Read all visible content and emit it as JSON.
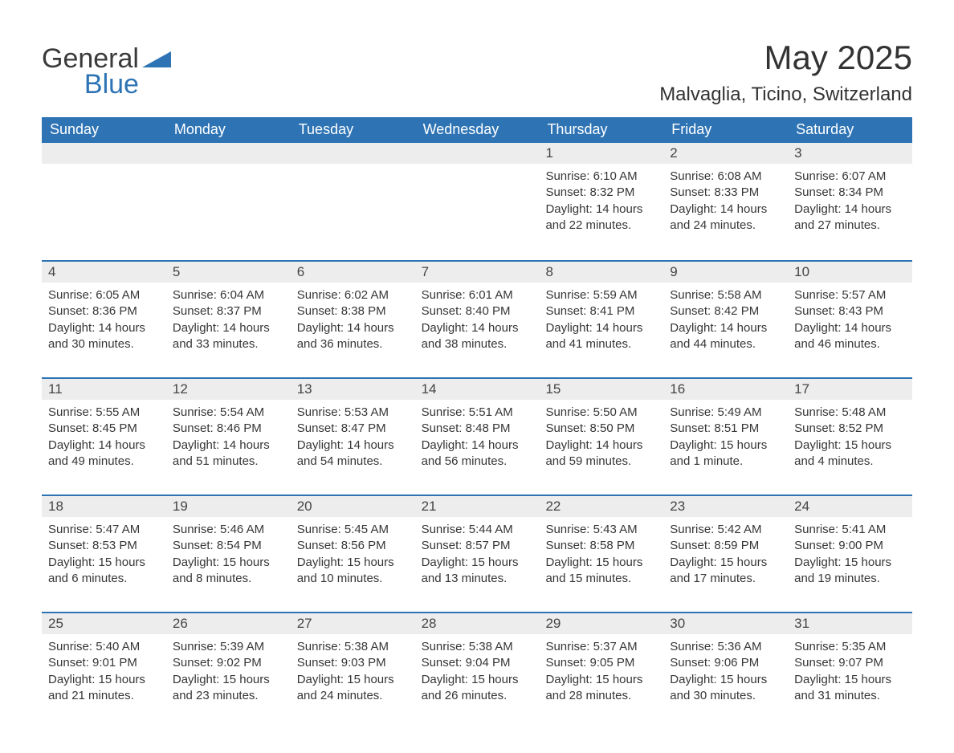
{
  "logo": {
    "word1": "General",
    "word2": "Blue",
    "accent_color": "#2e74b5",
    "text_color": "#3a3a3a"
  },
  "title": "May 2025",
  "location": "Malvaglia, Ticino, Switzerland",
  "colors": {
    "header_bg": "#2e74b5",
    "header_text": "#ffffff",
    "daynum_bg": "#ededed",
    "week_border": "#2e74b5",
    "body_text": "#363636",
    "page_bg": "#ffffff"
  },
  "day_headers": [
    "Sunday",
    "Monday",
    "Tuesday",
    "Wednesday",
    "Thursday",
    "Friday",
    "Saturday"
  ],
  "weeks": [
    [
      null,
      null,
      null,
      null,
      {
        "n": "1",
        "sunrise": "Sunrise: 6:10 AM",
        "sunset": "Sunset: 8:32 PM",
        "daylight": "Daylight: 14 hours and 22 minutes."
      },
      {
        "n": "2",
        "sunrise": "Sunrise: 6:08 AM",
        "sunset": "Sunset: 8:33 PM",
        "daylight": "Daylight: 14 hours and 24 minutes."
      },
      {
        "n": "3",
        "sunrise": "Sunrise: 6:07 AM",
        "sunset": "Sunset: 8:34 PM",
        "daylight": "Daylight: 14 hours and 27 minutes."
      }
    ],
    [
      {
        "n": "4",
        "sunrise": "Sunrise: 6:05 AM",
        "sunset": "Sunset: 8:36 PM",
        "daylight": "Daylight: 14 hours and 30 minutes."
      },
      {
        "n": "5",
        "sunrise": "Sunrise: 6:04 AM",
        "sunset": "Sunset: 8:37 PM",
        "daylight": "Daylight: 14 hours and 33 minutes."
      },
      {
        "n": "6",
        "sunrise": "Sunrise: 6:02 AM",
        "sunset": "Sunset: 8:38 PM",
        "daylight": "Daylight: 14 hours and 36 minutes."
      },
      {
        "n": "7",
        "sunrise": "Sunrise: 6:01 AM",
        "sunset": "Sunset: 8:40 PM",
        "daylight": "Daylight: 14 hours and 38 minutes."
      },
      {
        "n": "8",
        "sunrise": "Sunrise: 5:59 AM",
        "sunset": "Sunset: 8:41 PM",
        "daylight": "Daylight: 14 hours and 41 minutes."
      },
      {
        "n": "9",
        "sunrise": "Sunrise: 5:58 AM",
        "sunset": "Sunset: 8:42 PM",
        "daylight": "Daylight: 14 hours and 44 minutes."
      },
      {
        "n": "10",
        "sunrise": "Sunrise: 5:57 AM",
        "sunset": "Sunset: 8:43 PM",
        "daylight": "Daylight: 14 hours and 46 minutes."
      }
    ],
    [
      {
        "n": "11",
        "sunrise": "Sunrise: 5:55 AM",
        "sunset": "Sunset: 8:45 PM",
        "daylight": "Daylight: 14 hours and 49 minutes."
      },
      {
        "n": "12",
        "sunrise": "Sunrise: 5:54 AM",
        "sunset": "Sunset: 8:46 PM",
        "daylight": "Daylight: 14 hours and 51 minutes."
      },
      {
        "n": "13",
        "sunrise": "Sunrise: 5:53 AM",
        "sunset": "Sunset: 8:47 PM",
        "daylight": "Daylight: 14 hours and 54 minutes."
      },
      {
        "n": "14",
        "sunrise": "Sunrise: 5:51 AM",
        "sunset": "Sunset: 8:48 PM",
        "daylight": "Daylight: 14 hours and 56 minutes."
      },
      {
        "n": "15",
        "sunrise": "Sunrise: 5:50 AM",
        "sunset": "Sunset: 8:50 PM",
        "daylight": "Daylight: 14 hours and 59 minutes."
      },
      {
        "n": "16",
        "sunrise": "Sunrise: 5:49 AM",
        "sunset": "Sunset: 8:51 PM",
        "daylight": "Daylight: 15 hours and 1 minute."
      },
      {
        "n": "17",
        "sunrise": "Sunrise: 5:48 AM",
        "sunset": "Sunset: 8:52 PM",
        "daylight": "Daylight: 15 hours and 4 minutes."
      }
    ],
    [
      {
        "n": "18",
        "sunrise": "Sunrise: 5:47 AM",
        "sunset": "Sunset: 8:53 PM",
        "daylight": "Daylight: 15 hours and 6 minutes."
      },
      {
        "n": "19",
        "sunrise": "Sunrise: 5:46 AM",
        "sunset": "Sunset: 8:54 PM",
        "daylight": "Daylight: 15 hours and 8 minutes."
      },
      {
        "n": "20",
        "sunrise": "Sunrise: 5:45 AM",
        "sunset": "Sunset: 8:56 PM",
        "daylight": "Daylight: 15 hours and 10 minutes."
      },
      {
        "n": "21",
        "sunrise": "Sunrise: 5:44 AM",
        "sunset": "Sunset: 8:57 PM",
        "daylight": "Daylight: 15 hours and 13 minutes."
      },
      {
        "n": "22",
        "sunrise": "Sunrise: 5:43 AM",
        "sunset": "Sunset: 8:58 PM",
        "daylight": "Daylight: 15 hours and 15 minutes."
      },
      {
        "n": "23",
        "sunrise": "Sunrise: 5:42 AM",
        "sunset": "Sunset: 8:59 PM",
        "daylight": "Daylight: 15 hours and 17 minutes."
      },
      {
        "n": "24",
        "sunrise": "Sunrise: 5:41 AM",
        "sunset": "Sunset: 9:00 PM",
        "daylight": "Daylight: 15 hours and 19 minutes."
      }
    ],
    [
      {
        "n": "25",
        "sunrise": "Sunrise: 5:40 AM",
        "sunset": "Sunset: 9:01 PM",
        "daylight": "Daylight: 15 hours and 21 minutes."
      },
      {
        "n": "26",
        "sunrise": "Sunrise: 5:39 AM",
        "sunset": "Sunset: 9:02 PM",
        "daylight": "Daylight: 15 hours and 23 minutes."
      },
      {
        "n": "27",
        "sunrise": "Sunrise: 5:38 AM",
        "sunset": "Sunset: 9:03 PM",
        "daylight": "Daylight: 15 hours and 24 minutes."
      },
      {
        "n": "28",
        "sunrise": "Sunrise: 5:38 AM",
        "sunset": "Sunset: 9:04 PM",
        "daylight": "Daylight: 15 hours and 26 minutes."
      },
      {
        "n": "29",
        "sunrise": "Sunrise: 5:37 AM",
        "sunset": "Sunset: 9:05 PM",
        "daylight": "Daylight: 15 hours and 28 minutes."
      },
      {
        "n": "30",
        "sunrise": "Sunrise: 5:36 AM",
        "sunset": "Sunset: 9:06 PM",
        "daylight": "Daylight: 15 hours and 30 minutes."
      },
      {
        "n": "31",
        "sunrise": "Sunrise: 5:35 AM",
        "sunset": "Sunset: 9:07 PM",
        "daylight": "Daylight: 15 hours and 31 minutes."
      }
    ]
  ]
}
